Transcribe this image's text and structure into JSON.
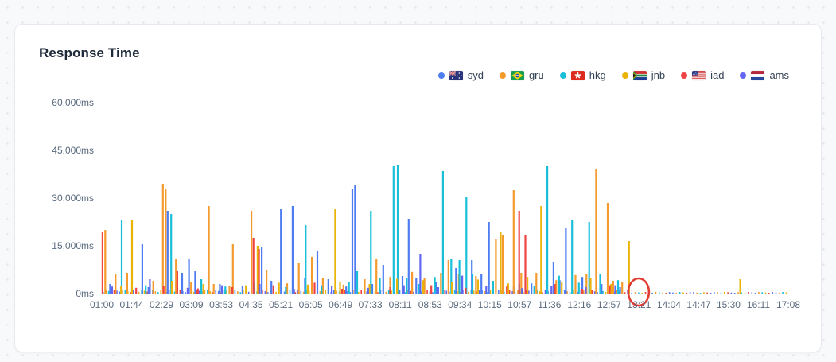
{
  "card": {
    "title": "Response Time"
  },
  "legend": [
    {
      "label": "syd",
      "flag": "au"
    },
    {
      "label": "gru",
      "flag": "br"
    },
    {
      "label": "hkg",
      "flag": "hk"
    },
    {
      "label": "jnb",
      "flag": "za"
    },
    {
      "label": "iad",
      "flag": "us"
    },
    {
      "label": "ams",
      "flag": "nl"
    }
  ],
  "chart_data": {
    "type": "bar",
    "title": "Response Time",
    "xlabel": "",
    "ylabel": "ms",
    "ylim": [
      0,
      60000
    ],
    "grid": false,
    "legend_position": "top-right",
    "y_ticks": [
      {
        "value": 60000,
        "label": "60,000ms"
      },
      {
        "value": 45000,
        "label": "45,000ms"
      },
      {
        "value": 30000,
        "label": "30,000ms"
      },
      {
        "value": 15000,
        "label": "15,000ms"
      },
      {
        "value": 0,
        "label": "0ms"
      }
    ],
    "x_tick_labels": [
      "01:00",
      "01:44",
      "02:29",
      "03:09",
      "03:53",
      "04:35",
      "05:21",
      "06:05",
      "06:49",
      "07:33",
      "08:11",
      "08:53",
      "09:34",
      "10:15",
      "10:57",
      "11:36",
      "12:16",
      "12:57",
      "13:21",
      "14:04",
      "14:47",
      "15:30",
      "16:11",
      "17:08"
    ],
    "x_unit": "permille of time axis from 01:00 to 17:08",
    "series": [
      {
        "name": "syd",
        "color": "#4e7df2",
        "points": [
          [
            12,
            3000
          ],
          [
            59,
            15500
          ],
          [
            68,
            2000
          ],
          [
            96,
            26000
          ],
          [
            117,
            6500
          ],
          [
            127,
            11000
          ],
          [
            136,
            7000
          ],
          [
            172,
            3000
          ],
          [
            205,
            2500
          ],
          [
            233,
            14500
          ],
          [
            247,
            4000
          ],
          [
            261,
            26500
          ],
          [
            278,
            27500
          ],
          [
            296,
            5000
          ],
          [
            314,
            13500
          ],
          [
            330,
            4500
          ],
          [
            356,
            2200
          ],
          [
            365,
            33000
          ],
          [
            369,
            34000
          ],
          [
            394,
            3000
          ],
          [
            410,
            9000
          ],
          [
            438,
            5500
          ],
          [
            447,
            23500
          ],
          [
            458,
            4800
          ],
          [
            487,
            3500
          ],
          [
            516,
            8000
          ],
          [
            539,
            10500
          ],
          [
            553,
            6000
          ],
          [
            564,
            22500
          ],
          [
            600,
            2500
          ],
          [
            626,
            3200
          ],
          [
            658,
            10000
          ],
          [
            667,
            4200
          ],
          [
            676,
            20500
          ],
          [
            700,
            5200
          ],
          [
            728,
            3000
          ],
          [
            755,
            2000
          ]
        ]
      },
      {
        "name": "gru",
        "color": "#f59b2d",
        "points": [
          [
            5,
            20000
          ],
          [
            20,
            6000
          ],
          [
            37,
            6500
          ],
          [
            75,
            4000
          ],
          [
            89,
            34500
          ],
          [
            93,
            33000
          ],
          [
            108,
            11000
          ],
          [
            130,
            3500
          ],
          [
            156,
            27500
          ],
          [
            163,
            3000
          ],
          [
            186,
            2500
          ],
          [
            191,
            15500
          ],
          [
            218,
            26000
          ],
          [
            240,
            7500
          ],
          [
            270,
            3200
          ],
          [
            287,
            9500
          ],
          [
            306,
            11500
          ],
          [
            322,
            5000
          ],
          [
            352,
            2800
          ],
          [
            383,
            4500
          ],
          [
            400,
            11000
          ],
          [
            420,
            5200
          ],
          [
            452,
            6800
          ],
          [
            470,
            5000
          ],
          [
            494,
            6500
          ],
          [
            505,
            10500
          ],
          [
            520,
            6000
          ],
          [
            545,
            5500
          ],
          [
            574,
            17000
          ],
          [
            584,
            18500
          ],
          [
            600,
            32500
          ],
          [
            611,
            6500
          ],
          [
            633,
            6500
          ],
          [
            662,
            4200
          ],
          [
            690,
            5800
          ],
          [
            706,
            6000
          ],
          [
            720,
            39000
          ],
          [
            737,
            28500
          ],
          [
            745,
            4000
          ],
          [
            758,
            3500
          ]
        ]
      },
      {
        "name": "hkg",
        "color": "#19bfd9",
        "points": [
          [
            29,
            23000
          ],
          [
            64,
            2600
          ],
          [
            101,
            25000
          ],
          [
            145,
            4500
          ],
          [
            180,
            2200
          ],
          [
            222,
            3400
          ],
          [
            268,
            2000
          ],
          [
            297,
            21500
          ],
          [
            320,
            2600
          ],
          [
            360,
            3500
          ],
          [
            372,
            7000
          ],
          [
            392,
            26000
          ],
          [
            405,
            5000
          ],
          [
            425,
            40000
          ],
          [
            431,
            40500
          ],
          [
            444,
            4800
          ],
          [
            462,
            3000
          ],
          [
            485,
            5200
          ],
          [
            497,
            38500
          ],
          [
            509,
            11000
          ],
          [
            521,
            10500
          ],
          [
            531,
            30500
          ],
          [
            540,
            6200
          ],
          [
            570,
            4000
          ],
          [
            608,
            3000
          ],
          [
            630,
            2400
          ],
          [
            649,
            40000
          ],
          [
            666,
            5600
          ],
          [
            685,
            23000
          ],
          [
            695,
            3400
          ],
          [
            710,
            22500
          ],
          [
            726,
            6200
          ],
          [
            752,
            4200
          ]
        ]
      },
      {
        "name": "jnb",
        "color": "#eab308",
        "points": [
          [
            28,
            2500
          ],
          [
            44,
            23000
          ],
          [
            102,
            4000
          ],
          [
            148,
            3000
          ],
          [
            210,
            2600
          ],
          [
            227,
            15000
          ],
          [
            258,
            3400
          ],
          [
            300,
            2800
          ],
          [
            340,
            26500
          ],
          [
            347,
            3800
          ],
          [
            390,
            3000
          ],
          [
            430,
            4600
          ],
          [
            468,
            4200
          ],
          [
            510,
            3600
          ],
          [
            548,
            4400
          ],
          [
            581,
            19500
          ],
          [
            592,
            3200
          ],
          [
            620,
            5200
          ],
          [
            640,
            27500
          ],
          [
            670,
            3600
          ],
          [
            712,
            4800
          ],
          [
            742,
            3000
          ],
          [
            768,
            16500
          ],
          [
            930,
            4500
          ]
        ]
      },
      {
        "name": "iad",
        "color": "#ef4444",
        "points": [
          [
            1,
            19500
          ],
          [
            50,
            1800
          ],
          [
            90,
            2400
          ],
          [
            110,
            7000
          ],
          [
            140,
            1600
          ],
          [
            190,
            2000
          ],
          [
            221,
            17500
          ],
          [
            229,
            14000
          ],
          [
            250,
            2600
          ],
          [
            310,
            3400
          ],
          [
            350,
            1500
          ],
          [
            420,
            2000
          ],
          [
            480,
            2600
          ],
          [
            530,
            1800
          ],
          [
            590,
            2200
          ],
          [
            608,
            26000
          ],
          [
            617,
            18500
          ],
          [
            660,
            3000
          ],
          [
            700,
            1500
          ],
          [
            740,
            2600
          ]
        ]
      },
      {
        "name": "ams",
        "color": "#6366f1",
        "points": [
          [
            15,
            2200
          ],
          [
            70,
            4500
          ],
          [
            125,
            1800
          ],
          [
            175,
            2600
          ],
          [
            230,
            3000
          ],
          [
            280,
            1500
          ],
          [
            335,
            2400
          ],
          [
            388,
            1800
          ],
          [
            440,
            2600
          ],
          [
            464,
            12500
          ],
          [
            490,
            2000
          ],
          [
            525,
            5600
          ],
          [
            560,
            2400
          ],
          [
            612,
            1700
          ],
          [
            655,
            2300
          ],
          [
            705,
            2000
          ],
          [
            748,
            2600
          ]
        ]
      }
    ],
    "baseline_noise": {
      "from": 2,
      "to": 768,
      "step": 4,
      "value": 900
    },
    "tail_noise": {
      "from": 772,
      "to": 998,
      "step": 5,
      "value": 380
    },
    "annotation": {
      "type": "circle",
      "x": 782,
      "at_value": 0,
      "color": "#e03c31"
    }
  }
}
